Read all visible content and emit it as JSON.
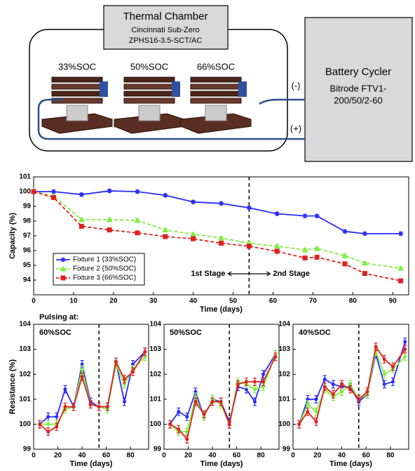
{
  "diagram": {
    "chamber_title": "Thermal Chamber",
    "chamber_make": "Cincinnati Sub-Zero",
    "chamber_model": "ZPHS16-3.5-SCT/AC",
    "fixtures": [
      "33%SOC",
      "50%SOC",
      "66%SOC"
    ],
    "cycler_title": "Battery Cycler",
    "cycler_line1": "Bitrode FTV1-",
    "cycler_line2": "200/50/2-60",
    "minus": "(-)",
    "plus": "(+)"
  },
  "chart_data": [
    {
      "type": "line",
      "xlabel": "Time (days)",
      "ylabel": "Capacity (%)",
      "x": [
        0,
        5,
        12,
        19,
        26,
        33,
        40,
        47,
        54,
        61,
        68,
        71,
        78,
        83,
        92
      ],
      "xlim": [
        0,
        94
      ],
      "ylim": [
        93,
        101
      ],
      "xticks": [
        0,
        10,
        20,
        30,
        40,
        50,
        60,
        70,
        80,
        90
      ],
      "yticks": [
        94,
        95,
        96,
        97,
        98,
        99,
        100,
        101
      ],
      "vline": 54,
      "annotations": [
        "1st Stage",
        "2nd Stage"
      ],
      "legend": "lower left",
      "series": [
        {
          "name": "Fixture 1 (33%SOC)",
          "color": "#2b2bff",
          "marker": "star",
          "dashed": false,
          "error": 0.1,
          "values": [
            100,
            100,
            99.8,
            100.05,
            100,
            99.75,
            99.3,
            99.2,
            98.9,
            98.5,
            98.35,
            98.35,
            97.3,
            97.15,
            97.15
          ]
        },
        {
          "name": "Fixture 2 (50%SOC)",
          "color": "#7cf03c",
          "marker": "triangle",
          "dashed": true,
          "error": 0.1,
          "values": [
            100,
            99.7,
            98.1,
            98.1,
            98.05,
            97.4,
            97.1,
            96.85,
            96.5,
            96.3,
            96.05,
            96.15,
            95.65,
            95.15,
            94.8
          ]
        },
        {
          "name": "Fixture 3 (66%SOC)",
          "color": "#e02020",
          "marker": "square",
          "dashed": true,
          "error": 0.1,
          "values": [
            100,
            99.6,
            97.65,
            97.4,
            97.2,
            96.95,
            96.8,
            96.5,
            96.3,
            95.95,
            95.5,
            95.55,
            95.1,
            94.45,
            93.95
          ]
        }
      ]
    },
    {
      "type": "line",
      "title": "60%SOC",
      "annotation": "Pulsing at:",
      "xlabel": "Time (days)",
      "ylabel": "Resistance (%)",
      "x": [
        5,
        12,
        19,
        26,
        33,
        40,
        47,
        54,
        61,
        68,
        75,
        82,
        92
      ],
      "xlim": [
        0,
        95
      ],
      "ylim": [
        99,
        104
      ],
      "xticks": [
        0,
        20,
        40,
        60,
        80
      ],
      "yticks": [
        99,
        100,
        101,
        102,
        103,
        104
      ],
      "vline": 54,
      "series": [
        {
          "color": "#2b2bff",
          "error": 0.15,
          "values": [
            100,
            100.3,
            100.3,
            101.4,
            100.7,
            102.4,
            100.9,
            100.7,
            100.7,
            102.5,
            100.9,
            102.4,
            102.9
          ]
        },
        {
          "color": "#7cf03c",
          "error": 0.15,
          "values": [
            100,
            100,
            100,
            100.6,
            100.7,
            102.2,
            100.8,
            100.7,
            100.6,
            102.4,
            101.6,
            102.2,
            102.7
          ]
        },
        {
          "color": "#e02020",
          "error": 0.15,
          "values": [
            100,
            99.7,
            99.9,
            100.7,
            100.7,
            101.9,
            100.8,
            100.7,
            100.7,
            102.5,
            101.8,
            102.1,
            102.9
          ]
        }
      ]
    },
    {
      "type": "line",
      "title": "50%SOC",
      "xlabel": "Time (days)",
      "x": [
        5,
        12,
        19,
        26,
        33,
        40,
        47,
        54,
        61,
        68,
        75,
        82,
        92
      ],
      "xlim": [
        0,
        95
      ],
      "ylim": [
        99,
        104
      ],
      "xticks": [
        0,
        20,
        40,
        60,
        80
      ],
      "yticks": [
        99,
        100,
        101,
        102,
        103,
        104
      ],
      "vline": 54,
      "series": [
        {
          "color": "#2b2bff",
          "error": 0.15,
          "values": [
            100,
            100.5,
            100.3,
            101.3,
            100.3,
            101.0,
            100.9,
            100.1,
            101.5,
            101.4,
            100.9,
            102.0,
            102.8
          ]
        },
        {
          "color": "#7cf03c",
          "error": 0.15,
          "values": [
            100,
            99.7,
            99.7,
            101.1,
            100.3,
            101,
            100.8,
            100.0,
            101.7,
            101.6,
            101.4,
            101.5,
            102.8
          ]
        },
        {
          "color": "#e02020",
          "error": 0.15,
          "values": [
            100,
            99.8,
            99.4,
            100.9,
            100.4,
            100.9,
            100.9,
            100.0,
            101.6,
            101.7,
            101.7,
            101.7,
            102.7
          ]
        }
      ]
    },
    {
      "type": "line",
      "title": "40%SOC",
      "xlabel": "Time (days)",
      "x": [
        5,
        12,
        19,
        26,
        33,
        40,
        47,
        54,
        61,
        68,
        75,
        82,
        92
      ],
      "xlim": [
        0,
        95
      ],
      "ylim": [
        99,
        104
      ],
      "xticks": [
        0,
        20,
        40,
        60,
        80
      ],
      "yticks": [
        99,
        100,
        101,
        102,
        103,
        104
      ],
      "vline": 54,
      "series": [
        {
          "color": "#2b2bff",
          "error": 0.15,
          "values": [
            100,
            101.0,
            101.0,
            101.8,
            101.6,
            101.5,
            101.5,
            100.9,
            101.2,
            102.8,
            101.6,
            101.7,
            103.3
          ]
        },
        {
          "color": "#7cf03c",
          "error": 0.15,
          "values": [
            100,
            100.8,
            100.5,
            101.4,
            101.1,
            101.3,
            101.6,
            101.0,
            101.2,
            102.9,
            102.0,
            102.2,
            102.7
          ]
        },
        {
          "color": "#e02020",
          "error": 0.15,
          "values": [
            100,
            100.5,
            100.1,
            101.5,
            101.2,
            101.6,
            101.4,
            101.0,
            101.3,
            103.1,
            102.6,
            102.3,
            103.0
          ]
        }
      ]
    }
  ]
}
